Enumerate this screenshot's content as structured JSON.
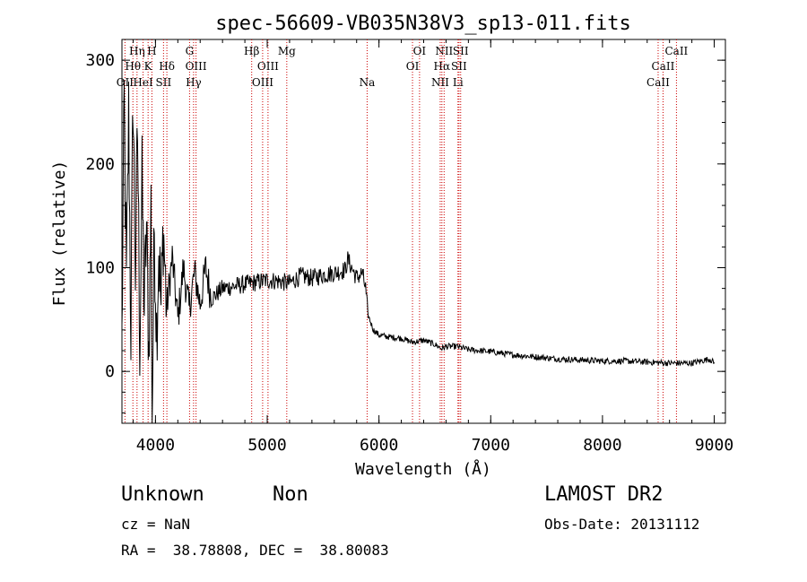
{
  "chart_data": {
    "type": "line",
    "title": "spec-56609-VB035N38V3_sp13-011.fits",
    "xlabel": "Wavelength (Å)",
    "ylabel": "Flux (relative)",
    "xlim": [
      3700,
      9100
    ],
    "ylim": [
      -50,
      320
    ],
    "xticks": [
      4000,
      5000,
      6000,
      7000,
      8000,
      9000
    ],
    "yticks": [
      0,
      100,
      200,
      300
    ],
    "line_color": "#000000",
    "marker_color": "#cc0000",
    "series": [
      {
        "anchors": [
          [
            3700,
            30
          ],
          [
            3720,
            260
          ],
          [
            3740,
            80
          ],
          [
            3760,
            250
          ],
          [
            3780,
            40
          ],
          [
            3800,
            270
          ],
          [
            3820,
            100
          ],
          [
            3840,
            230
          ],
          [
            3860,
            30
          ],
          [
            3880,
            180
          ],
          [
            3900,
            60
          ],
          [
            3920,
            140
          ],
          [
            3940,
            20
          ],
          [
            3960,
            160
          ],
          [
            3970,
            -45
          ],
          [
            3990,
            140
          ],
          [
            4010,
            40
          ],
          [
            4030,
            120
          ],
          [
            4050,
            60
          ],
          [
            4070,
            140
          ],
          [
            4100,
            60
          ],
          [
            4150,
            110
          ],
          [
            4200,
            50
          ],
          [
            4250,
            100
          ],
          [
            4300,
            60
          ],
          [
            4350,
            95
          ],
          [
            4400,
            65
          ],
          [
            4450,
            100
          ],
          [
            4500,
            70
          ],
          [
            4600,
            80
          ],
          [
            4700,
            82
          ],
          [
            4800,
            84
          ],
          [
            4900,
            86
          ],
          [
            5000,
            88
          ],
          [
            5100,
            87
          ],
          [
            5200,
            85
          ],
          [
            5300,
            92
          ],
          [
            5400,
            90
          ],
          [
            5500,
            93
          ],
          [
            5600,
            95
          ],
          [
            5700,
            98
          ],
          [
            5720,
            108
          ],
          [
            5800,
            90
          ],
          [
            5850,
            95
          ],
          [
            5880,
            80
          ],
          [
            5900,
            55
          ],
          [
            5950,
            40
          ],
          [
            6000,
            35
          ],
          [
            6100,
            33
          ],
          [
            6200,
            32
          ],
          [
            6300,
            28
          ],
          [
            6400,
            30
          ],
          [
            6500,
            26
          ],
          [
            6560,
            22
          ],
          [
            6600,
            24
          ],
          [
            6700,
            24
          ],
          [
            6800,
            21
          ],
          [
            6900,
            20
          ],
          [
            7000,
            19
          ],
          [
            7200,
            16
          ],
          [
            7400,
            14
          ],
          [
            7600,
            12
          ],
          [
            7800,
            11
          ],
          [
            8000,
            10
          ],
          [
            8200,
            10
          ],
          [
            8400,
            9
          ],
          [
            8600,
            8
          ],
          [
            8800,
            8
          ],
          [
            8960,
            12
          ],
          [
            9000,
            8
          ]
        ]
      }
    ],
    "line_markers": [
      {
        "label": "OII",
        "wl": 3727,
        "row": 2
      },
      {
        "label": "Hη",
        "wl": 3835,
        "row": 0
      },
      {
        "label": "Hθ",
        "wl": 3798,
        "row": 1
      },
      {
        "label": "H",
        "wl": 3968,
        "row": 0
      },
      {
        "label": "K",
        "wl": 3934,
        "row": 1
      },
      {
        "label": "HeI",
        "wl": 3889,
        "row": 2
      },
      {
        "label": "SII",
        "wl": 4072,
        "row": 2
      },
      {
        "label": "Hδ",
        "wl": 4102,
        "row": 1
      },
      {
        "label": "G",
        "wl": 4305,
        "row": 0
      },
      {
        "label": "OIII",
        "wl": 4363,
        "row": 1
      },
      {
        "label": "Hγ",
        "wl": 4341,
        "row": 2
      },
      {
        "label": "Hβ",
        "wl": 4861,
        "row": 0
      },
      {
        "label": "OIII",
        "wl": 5007,
        "row": 1
      },
      {
        "label": "OIII",
        "wl": 4959,
        "row": 2
      },
      {
        "label": "Mg",
        "wl": 5175,
        "row": 0
      },
      {
        "label": "Na",
        "wl": 5894,
        "row": 2
      },
      {
        "label": "OI",
        "wl": 6363,
        "row": 0
      },
      {
        "label": "OI",
        "wl": 6300,
        "row": 1
      },
      {
        "label": "NII",
        "wl": 6583,
        "row": 0
      },
      {
        "label": "Hα",
        "wl": 6563,
        "row": 1
      },
      {
        "label": "NII",
        "wl": 6548,
        "row": 2
      },
      {
        "label": "SII",
        "wl": 6731,
        "row": 0
      },
      {
        "label": "SII",
        "wl": 6716,
        "row": 1
      },
      {
        "label": "Li",
        "wl": 6707,
        "row": 2
      },
      {
        "label": "CaII",
        "wl": 8662,
        "row": 0
      },
      {
        "label": "CaII",
        "wl": 8542,
        "row": 1
      },
      {
        "label": "CaII",
        "wl": 8498,
        "row": 2
      }
    ]
  },
  "info": {
    "class_label": "Unknown",
    "subclass_label": "Non",
    "survey": "LAMOST DR2",
    "cz": "cz = NaN",
    "obs_date": "Obs-Date: 20131112",
    "coords": "RA =  38.78808, DEC =  38.80083"
  }
}
